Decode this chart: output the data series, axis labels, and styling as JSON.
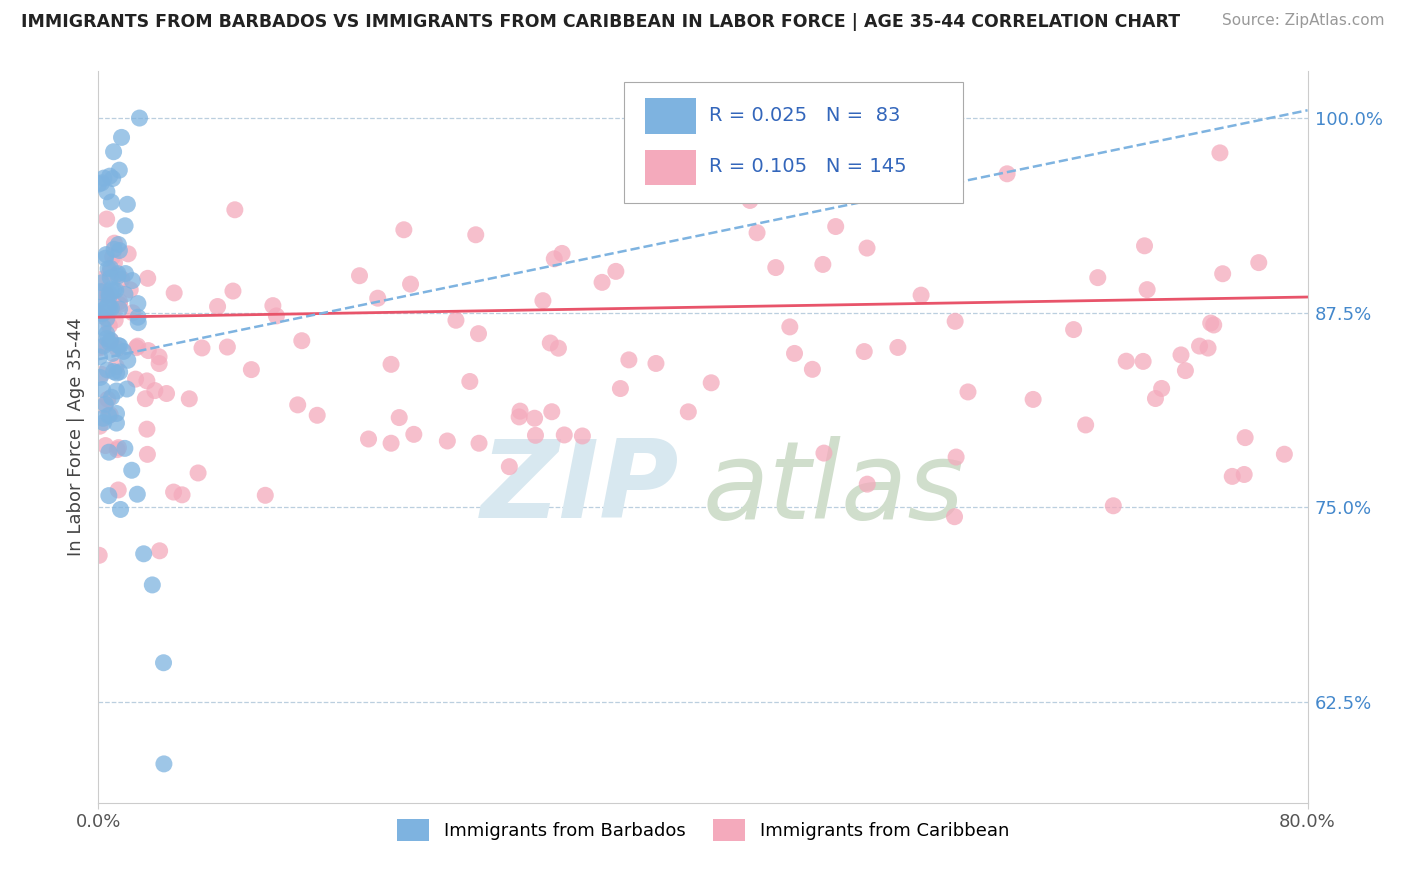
{
  "title": "IMMIGRANTS FROM BARBADOS VS IMMIGRANTS FROM CARIBBEAN IN LABOR FORCE | AGE 35-44 CORRELATION CHART",
  "source": "Source: ZipAtlas.com",
  "ylabel": "In Labor Force | Age 35-44",
  "xlabel_bottom_left": "0.0%",
  "xlabel_bottom_right": "80.0%",
  "right_yticks": [
    62.5,
    75.0,
    87.5,
    100.0
  ],
  "right_ytick_labels": [
    "62.5%",
    "75.0%",
    "87.5%",
    "100.0%"
  ],
  "barbados_R": 0.025,
  "barbados_N": 83,
  "caribbean_R": 0.105,
  "caribbean_N": 145,
  "legend_label_barbados": "Immigrants from Barbados",
  "legend_label_caribbean": "Immigrants from Caribbean",
  "blue_color": "#7EB3E0",
  "pink_color": "#F4AABC",
  "blue_line_color": "#7EB3E0",
  "pink_line_color": "#E8546A",
  "watermark_zip_color": "#D8E8F0",
  "watermark_atlas_color": "#D0DECC",
  "xmin": 0.0,
  "xmax": 80.0,
  "ymin": 56.0,
  "ymax": 103.0,
  "blue_line_x0": 0.0,
  "blue_line_y0": 84.5,
  "blue_line_x1": 80.0,
  "blue_line_y1": 100.5,
  "pink_line_x0": 0.0,
  "pink_line_y0": 87.2,
  "pink_line_x1": 80.0,
  "pink_line_y1": 88.5
}
